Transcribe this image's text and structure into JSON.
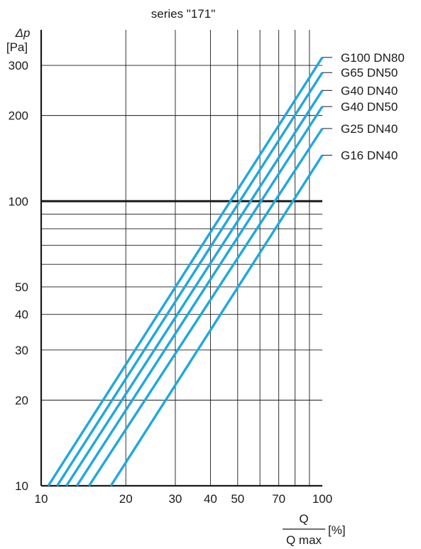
{
  "chart_data": {
    "type": "line",
    "title": "series  \"171\"",
    "ylabel_symbol": "Δp",
    "ylabel_unit": "[Pa]",
    "xlabel_numerator": "Q",
    "xlabel_denominator": "Q max",
    "xlabel_unit": "[%]",
    "x_scale": "log",
    "y_scale": "log",
    "xlim": [
      10,
      100
    ],
    "ylim": [
      10,
      400
    ],
    "grid": true,
    "x_ticks": [
      10,
      20,
      30,
      40,
      50,
      70,
      100
    ],
    "x_tick_labels": [
      "10",
      "20",
      "30",
      "40",
      "50",
      "70",
      "100"
    ],
    "x_gridlines": [
      20,
      30,
      40,
      50,
      60,
      70,
      80,
      90
    ],
    "y_ticks": [
      10,
      20,
      30,
      40,
      50,
      100,
      200,
      300
    ],
    "y_tick_labels": [
      "10",
      "20",
      "30",
      "40",
      "50",
      "100",
      "200",
      "300"
    ],
    "y_gridlines": [
      20,
      30,
      40,
      50,
      60,
      70,
      80,
      90,
      200,
      300
    ],
    "y_emphasis_line": 100,
    "line_color": "#1fa8de",
    "series": [
      {
        "name": "G100 DN80",
        "x": [
          10.6,
          100
        ],
        "y": [
          10,
          320
        ]
      },
      {
        "name": "G65 DN50",
        "x": [
          11.4,
          100
        ],
        "y": [
          10,
          283
        ]
      },
      {
        "name": "G40 DN40",
        "x": [
          12.3,
          100
        ],
        "y": [
          10,
          245
        ]
      },
      {
        "name": "G40 DN50",
        "x": [
          13.4,
          100
        ],
        "y": [
          10,
          215
        ]
      },
      {
        "name": "G25 DN40",
        "x": [
          14.8,
          100
        ],
        "y": [
          10,
          180
        ]
      },
      {
        "name": "G16 DN40",
        "x": [
          17.7,
          100
        ],
        "y": [
          10,
          145
        ]
      }
    ]
  }
}
